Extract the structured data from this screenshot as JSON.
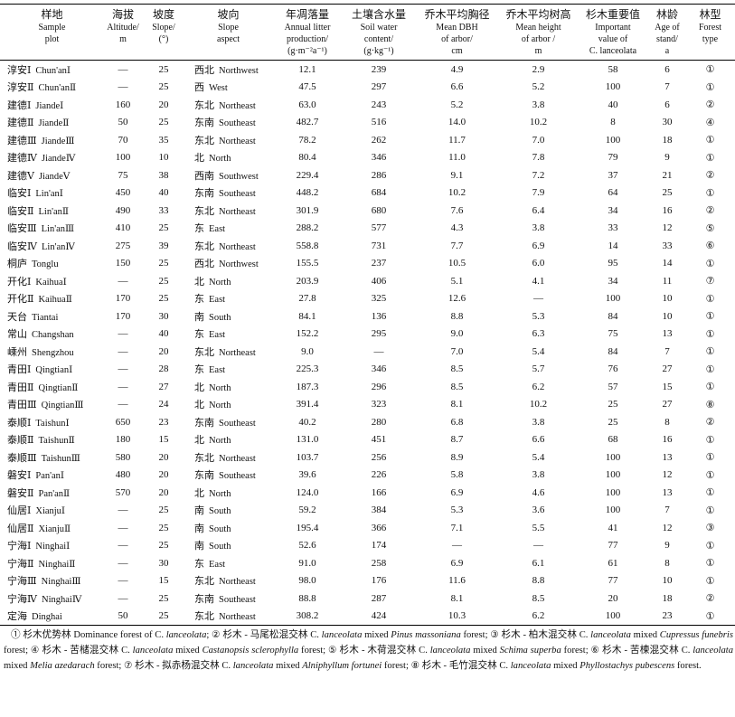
{
  "table": {
    "columns": [
      {
        "zh": "样地",
        "en": [
          "Sample",
          "plot"
        ]
      },
      {
        "zh": "海拔",
        "en": [
          "Altitude/",
          "m"
        ]
      },
      {
        "zh": "坡度",
        "en": [
          "Slope/",
          "(°)"
        ]
      },
      {
        "zh": "坡向",
        "en": [
          "Slope",
          "aspect"
        ]
      },
      {
        "zh": "年凋落量",
        "en": [
          "Annual litter",
          "production/",
          "(g·m⁻²a⁻¹)"
        ]
      },
      {
        "zh": "土壤含水量",
        "en": [
          "Soil water",
          "content/",
          "(g·kg⁻¹)"
        ]
      },
      {
        "zh": "乔木平均胸径",
        "en": [
          "Mean DBH",
          "of arbor/",
          "cm"
        ]
      },
      {
        "zh": "乔木平均树高",
        "en": [
          "Mean height",
          "of arbor /",
          "m"
        ]
      },
      {
        "zh": "杉木重要值",
        "en": [
          "Important",
          "value of",
          "C. lanceolata"
        ]
      },
      {
        "zh": "林龄",
        "en": [
          "Age of",
          "stand/",
          "a"
        ]
      },
      {
        "zh": "林型",
        "en": [
          "Forest",
          "type"
        ]
      }
    ],
    "rows": [
      [
        "淳安Ⅰ",
        "Chun'anⅠ",
        "—",
        "25",
        "西北",
        "Northwest",
        "12.1",
        "239",
        "4.9",
        "2.9",
        "58",
        "6",
        "①"
      ],
      [
        "淳安Ⅱ",
        "Chun'anⅡ",
        "—",
        "25",
        "西",
        "West",
        "47.5",
        "297",
        "6.6",
        "5.2",
        "100",
        "7",
        "①"
      ],
      [
        "建德Ⅰ",
        "JiandeⅠ",
        "160",
        "20",
        "东北",
        "Northeast",
        "63.0",
        "243",
        "5.2",
        "3.8",
        "40",
        "6",
        "②"
      ],
      [
        "建德Ⅱ",
        "JiandeⅡ",
        "50",
        "25",
        "东南",
        "Southeast",
        "482.7",
        "516",
        "14.0",
        "10.2",
        "8",
        "30",
        "④"
      ],
      [
        "建德Ⅲ",
        "JiandeⅢ",
        "70",
        "35",
        "东北",
        "Northeast",
        "78.2",
        "262",
        "11.7",
        "7.0",
        "100",
        "18",
        "①"
      ],
      [
        "建德Ⅳ",
        "JiandeⅣ",
        "100",
        "10",
        "北",
        "North",
        "80.4",
        "346",
        "11.0",
        "7.8",
        "79",
        "9",
        "①"
      ],
      [
        "建德Ⅴ",
        "JiandeⅤ",
        "75",
        "38",
        "西南",
        "Southwest",
        "229.4",
        "286",
        "9.1",
        "7.2",
        "37",
        "21",
        "②"
      ],
      [
        "临安Ⅰ",
        "Lin'anⅠ",
        "450",
        "40",
        "东南",
        "Southeast",
        "448.2",
        "684",
        "10.2",
        "7.9",
        "64",
        "25",
        "①"
      ],
      [
        "临安Ⅱ",
        "Lin'anⅡ",
        "490",
        "33",
        "东北",
        "Northeast",
        "301.9",
        "680",
        "7.6",
        "6.4",
        "34",
        "16",
        "②"
      ],
      [
        "临安Ⅲ",
        "Lin'anⅢ",
        "410",
        "25",
        "东",
        "East",
        "288.2",
        "577",
        "4.3",
        "3.8",
        "33",
        "12",
        "⑤"
      ],
      [
        "临安Ⅳ",
        "Lin'anⅣ",
        "275",
        "39",
        "东北",
        "Northeast",
        "558.8",
        "731",
        "7.7",
        "6.9",
        "14",
        "33",
        "⑥"
      ],
      [
        "桐庐",
        "Tonglu",
        "150",
        "25",
        "西北",
        "Northwest",
        "155.5",
        "237",
        "10.5",
        "6.0",
        "95",
        "14",
        "①"
      ],
      [
        "开化Ⅰ",
        "KaihuaⅠ",
        "—",
        "25",
        "北",
        "North",
        "203.9",
        "406",
        "5.1",
        "4.1",
        "34",
        "11",
        "⑦"
      ],
      [
        "开化Ⅱ",
        "KaihuaⅡ",
        "170",
        "25",
        "东",
        "East",
        "27.8",
        "325",
        "12.6",
        "—",
        "100",
        "10",
        "①"
      ],
      [
        "天台",
        "Tiantai",
        "170",
        "30",
        "南",
        "South",
        "84.1",
        "136",
        "8.8",
        "5.3",
        "84",
        "10",
        "①"
      ],
      [
        "常山",
        "Changshan",
        "—",
        "40",
        "东",
        "East",
        "152.2",
        "295",
        "9.0",
        "6.3",
        "75",
        "13",
        "①"
      ],
      [
        "嵊州",
        "Shengzhou",
        "—",
        "20",
        "东北",
        "Northeast",
        "9.0",
        "—",
        "7.0",
        "5.4",
        "84",
        "7",
        "①"
      ],
      [
        "青田Ⅰ",
        "QingtianⅠ",
        "—",
        "28",
        "东",
        "East",
        "225.3",
        "346",
        "8.5",
        "5.7",
        "76",
        "27",
        "①"
      ],
      [
        "青田Ⅱ",
        "QingtianⅡ",
        "—",
        "27",
        "北",
        "North",
        "187.3",
        "296",
        "8.5",
        "6.2",
        "57",
        "15",
        "①"
      ],
      [
        "青田Ⅲ",
        "QingtianⅢ",
        "—",
        "24",
        "北",
        "North",
        "391.4",
        "323",
        "8.1",
        "10.2",
        "25",
        "27",
        "⑧"
      ],
      [
        "泰顺Ⅰ",
        "TaishunⅠ",
        "650",
        "23",
        "东南",
        "Southeast",
        "40.2",
        "280",
        "6.8",
        "3.8",
        "25",
        "8",
        "②"
      ],
      [
        "泰顺Ⅱ",
        "TaishunⅡ",
        "180",
        "15",
        "北",
        "North",
        "131.0",
        "451",
        "8.7",
        "6.6",
        "68",
        "16",
        "①"
      ],
      [
        "泰顺Ⅲ",
        "TaishunⅢ",
        "580",
        "20",
        "东北",
        "Northeast",
        "103.7",
        "256",
        "8.9",
        "5.4",
        "100",
        "13",
        "①"
      ],
      [
        "磐安Ⅰ",
        "Pan'anⅠ",
        "480",
        "20",
        "东南",
        "Southeast",
        "39.6",
        "226",
        "5.8",
        "3.8",
        "100",
        "12",
        "①"
      ],
      [
        "磐安Ⅱ",
        "Pan'anⅡ",
        "570",
        "20",
        "北",
        "North",
        "124.0",
        "166",
        "6.9",
        "4.6",
        "100",
        "13",
        "①"
      ],
      [
        "仙居Ⅰ",
        "XianjuⅠ",
        "—",
        "25",
        "南",
        "South",
        "59.2",
        "384",
        "5.3",
        "3.6",
        "100",
        "7",
        "①"
      ],
      [
        "仙居Ⅱ",
        "XianjuⅡ",
        "—",
        "25",
        "南",
        "South",
        "195.4",
        "366",
        "7.1",
        "5.5",
        "41",
        "12",
        "③"
      ],
      [
        "宁海Ⅰ",
        "NinghaiⅠ",
        "—",
        "25",
        "南",
        "South",
        "52.6",
        "174",
        "—",
        "—",
        "77",
        "9",
        "①"
      ],
      [
        "宁海Ⅱ",
        "NinghaiⅡ",
        "—",
        "30",
        "东",
        "East",
        "91.0",
        "258",
        "6.9",
        "6.1",
        "61",
        "8",
        "①"
      ],
      [
        "宁海Ⅲ",
        "NinghaiⅢ",
        "—",
        "15",
        "东北",
        "Northeast",
        "98.0",
        "176",
        "11.6",
        "8.8",
        "77",
        "10",
        "①"
      ],
      [
        "宁海Ⅳ",
        "NinghaiⅣ",
        "—",
        "25",
        "东南",
        "Southeast",
        "88.8",
        "287",
        "8.1",
        "8.5",
        "20",
        "18",
        "②"
      ],
      [
        "定海",
        "Dinghai",
        "50",
        "25",
        "东北",
        "Northeast",
        "308.2",
        "424",
        "10.3",
        "6.2",
        "100",
        "23",
        "①"
      ]
    ],
    "footnote": [
      {
        "text": "① 杉木优势林 Dominance forest of C. "
      },
      {
        "text": "lanceolata",
        "italic": true
      },
      {
        "text": "; ② 杉木 - 马尾松混交林 C. "
      },
      {
        "text": "lanceolata",
        "italic": true
      },
      {
        "text": " mixed "
      },
      {
        "text": "Pinus massoniana",
        "italic": true
      },
      {
        "text": " forest; ③ 杉木 - 柏木混交林 C. "
      },
      {
        "text": "lanceolata",
        "italic": true
      },
      {
        "text": " mixed "
      },
      {
        "text": "Cupressus funebris",
        "italic": true
      },
      {
        "text": " forest; ④ 杉木 - 苦槠混交林 C. "
      },
      {
        "text": "lanceolata",
        "italic": true
      },
      {
        "text": " mixed "
      },
      {
        "text": "Castanopsis sclerophylla",
        "italic": true
      },
      {
        "text": " forest; ⑤ 杉木 - 木荷混交林 C. "
      },
      {
        "text": "lanceolata",
        "italic": true
      },
      {
        "text": " mixed "
      },
      {
        "text": "Schima superba",
        "italic": true
      },
      {
        "text": " forest; ⑥ 杉木 - 苦楝混交林 C. "
      },
      {
        "text": "lanceolata",
        "italic": true
      },
      {
        "text": " mixed "
      },
      {
        "text": "Melia azedarach",
        "italic": true
      },
      {
        "text": " forest; ⑦ 杉木 - 拟赤杨混交林 C. "
      },
      {
        "text": "lanceolata",
        "italic": true
      },
      {
        "text": " mixed "
      },
      {
        "text": "Alniphyllum fortunei",
        "italic": true
      },
      {
        "text": " forest; ⑧ 杉木 - 毛竹混交林 C. "
      },
      {
        "text": "lanceolata",
        "italic": true
      },
      {
        "text": " mixed "
      },
      {
        "text": "Phyllostachys pubescens",
        "italic": true
      },
      {
        "text": " forest."
      }
    ]
  }
}
